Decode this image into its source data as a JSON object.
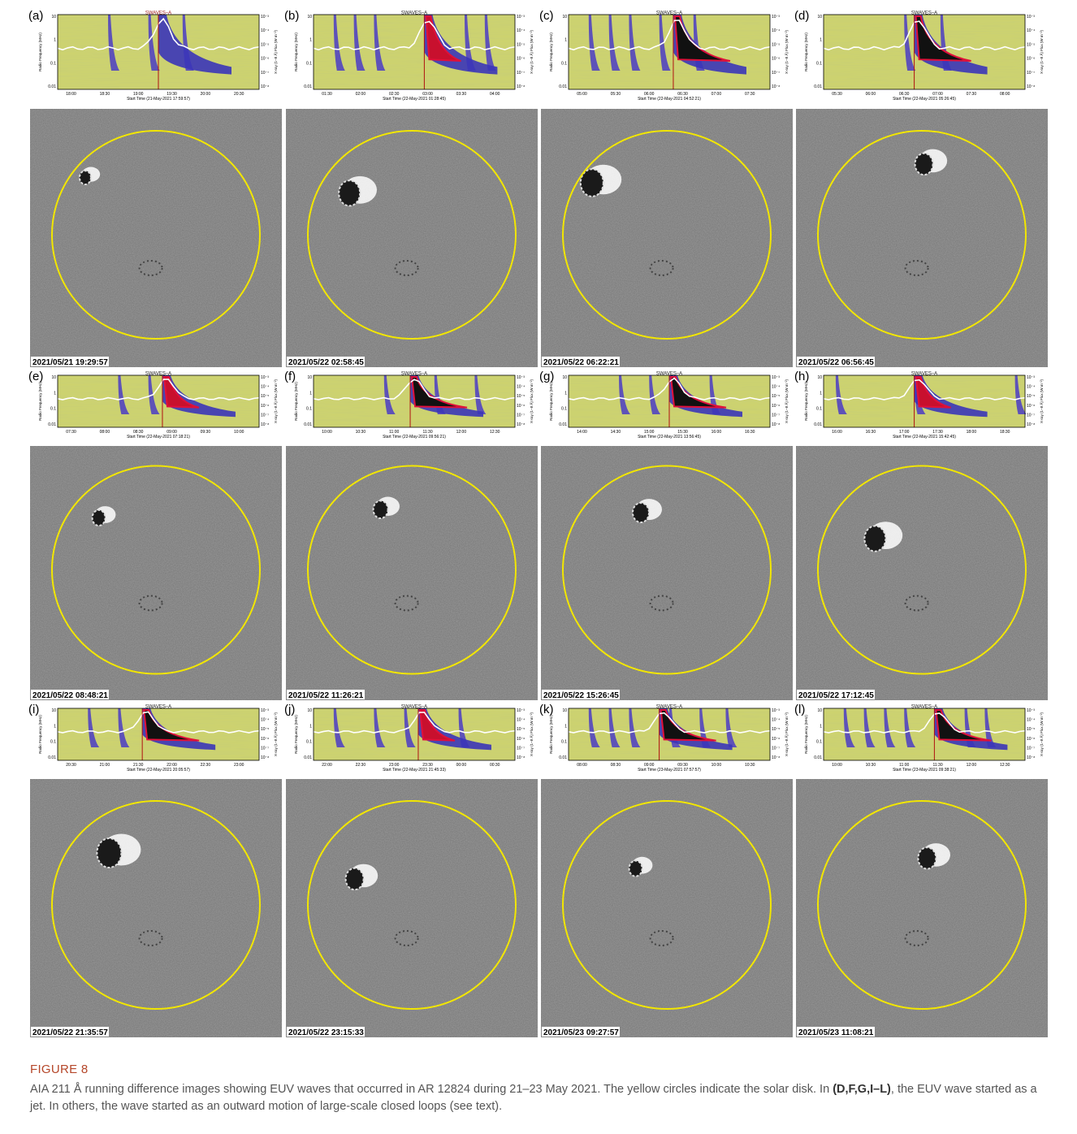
{
  "figure": {
    "spectrogram": {
      "title": "SWAVES–A",
      "y_label": "Radio Frequency (MHz)",
      "y2_label": "X-ray (1–8 Å) Flux (W m⁻²)",
      "yticks": [
        "10",
        "1",
        "0.1",
        "0.01"
      ],
      "y2ticks": [
        "10⁻³",
        "10⁻⁴",
        "10⁻⁵",
        "10⁻⁶",
        "10⁻⁷",
        "10⁻⁸"
      ]
    },
    "panels": [
      {
        "label": "(a)",
        "xticks": [
          "18:00",
          "18:30",
          "19:00",
          "19:30",
          "20:00",
          "20:30"
        ],
        "start_time": "Start Time (21-May-2021 17:59:57)",
        "timestamp": "2021/05/21 19:29:57"
      },
      {
        "label": "(b)",
        "xticks": [
          "01:30",
          "02:00",
          "02:30",
          "03:00",
          "03:30",
          "04:00"
        ],
        "start_time": "Start Time (22-May-2021 01:28:45)",
        "timestamp": "2021/05/22 02:58:45"
      },
      {
        "label": "(c)",
        "xticks": [
          "05:00",
          "05:30",
          "06:00",
          "06:30",
          "07:00",
          "07:30"
        ],
        "start_time": "Start Time (22-May-2021 04:52:21)",
        "timestamp": "2021/05/22 06:22:21"
      },
      {
        "label": "(d)",
        "xticks": [
          "05:30",
          "06:00",
          "06:30",
          "07:00",
          "07:30",
          "08:00"
        ],
        "start_time": "Start Time (22-May-2021 05:26:45)",
        "timestamp": "2021/05/22 06:56:45"
      },
      {
        "label": "(e)",
        "xticks": [
          "07:30",
          "08:00",
          "08:30",
          "09:00",
          "09:30",
          "10:00"
        ],
        "start_time": "Start Time (22-May-2021 07:18:21)",
        "timestamp": "2021/05/22 08:48:21"
      },
      {
        "label": "(f)",
        "xticks": [
          "10:00",
          "10:30",
          "11:00",
          "11:30",
          "12:00",
          "12:30"
        ],
        "start_time": "Start Time (22-May-2021 09:56:21)",
        "timestamp": "2021/05/22 11:26:21"
      },
      {
        "label": "(g)",
        "xticks": [
          "14:00",
          "14:30",
          "15:00",
          "15:30",
          "16:00",
          "16:30"
        ],
        "start_time": "Start Time (22-May-2021 13:56:45)",
        "timestamp": "2021/05/22 15:26:45"
      },
      {
        "label": "(h)",
        "xticks": [
          "16:00",
          "16:30",
          "17:00",
          "17:30",
          "18:00",
          "18:30"
        ],
        "start_time": "Start Time (22-May-2021 15:42:45)",
        "timestamp": "2021/05/22 17:12:45"
      },
      {
        "label": "(i)",
        "xticks": [
          "20:30",
          "21:00",
          "21:30",
          "22:00",
          "22:30",
          "23:00"
        ],
        "start_time": "Start Time (22-May-2021 20:05:57)",
        "timestamp": "2021/05/22 21:35:57"
      },
      {
        "label": "(j)",
        "xticks": [
          "22:00",
          "22:30",
          "23:00",
          "23:30",
          "00:00",
          "00:30"
        ],
        "start_time": "Start Time (22-May-2021 21:45:33)",
        "timestamp": "2021/05/22 23:15:33"
      },
      {
        "label": "(k)",
        "xticks": [
          "08:00",
          "08:30",
          "09:00",
          "09:30",
          "10:00",
          "10:30"
        ],
        "start_time": "Start Time (23-May-2021 07:57:57)",
        "timestamp": "2021/05/23 09:27:57"
      },
      {
        "label": "(l)",
        "xticks": [
          "10:00",
          "10:30",
          "11:00",
          "11:30",
          "12:00",
          "12:30"
        ],
        "start_time": "Start Time (23-May-2021 09:38:21)",
        "timestamp": "2021/05/23 11:08:21"
      }
    ],
    "caption": {
      "label": "FIGURE 8",
      "text_1": "AIA 211 Å running difference images showing EUV waves that occurred in AR 12824 during 21–23 May 2021. The yellow circles indicate the solar disk. In ",
      "bold": "(D,F,G,I–L)",
      "text_2": ", the EUV wave started as a jet. In others, the wave started as an outward motion of large-scale closed loops (see text)."
    }
  }
}
